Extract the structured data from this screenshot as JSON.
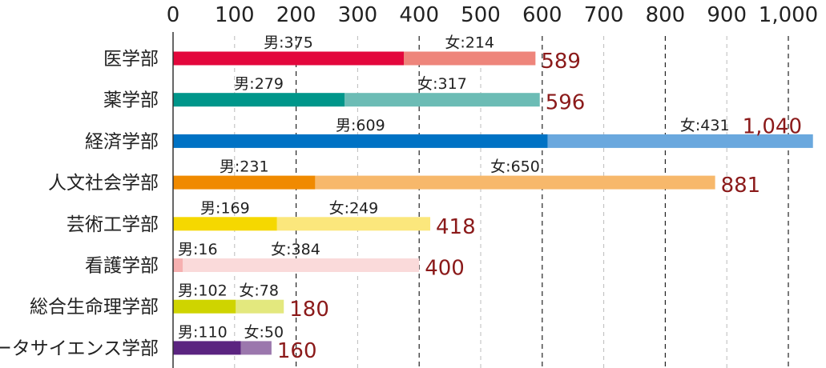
{
  "chart_data": {
    "type": "bar",
    "orientation": "horizontal",
    "stacked": true,
    "xlim": [
      0,
      1000
    ],
    "x_ticks": [
      {
        "value": 0,
        "label": "0"
      },
      {
        "value": 100,
        "label": "100"
      },
      {
        "value": 200,
        "label": "200"
      },
      {
        "value": 300,
        "label": "300"
      },
      {
        "value": 400,
        "label": "400"
      },
      {
        "value": 500,
        "label": "500"
      },
      {
        "value": 600,
        "label": "600"
      },
      {
        "value": 700,
        "label": "700"
      },
      {
        "value": 800,
        "label": "800"
      },
      {
        "value": 900,
        "label": "900"
      },
      {
        "value": 1000,
        "label": "1,000"
      }
    ],
    "grid": "vertical, dashed",
    "legend": "none",
    "categories": [
      {
        "name": "医学部",
        "male": 375,
        "female": 214,
        "male_label": "男:375",
        "female_label": "女:214",
        "total_label": "589",
        "male_color": "#e3073c",
        "female_color": "#ee857b"
      },
      {
        "name": "薬学部",
        "male": 279,
        "female": 317,
        "male_label": "男:279",
        "female_label": "女:317",
        "total_label": "596",
        "male_color": "#00968a",
        "female_color": "#6cbcb5"
      },
      {
        "name": "経済学部",
        "male": 609,
        "female": 431,
        "male_label": "男:609",
        "female_label": "女:431",
        "total_label": "1,040",
        "male_color": "#0072c4",
        "female_color": "#6aa8de"
      },
      {
        "name": "人文社会学部",
        "male": 231,
        "female": 650,
        "male_label": "男:231",
        "female_label": "女:650",
        "total_label": "881",
        "male_color": "#f08a00",
        "female_color": "#f7b86b"
      },
      {
        "name": "芸術工学部",
        "male": 169,
        "female": 249,
        "male_label": "男:169",
        "female_label": "女:249",
        "total_label": "418",
        "male_color": "#f5d800",
        "female_color": "#fbe77c"
      },
      {
        "name": "看護学部",
        "male": 16,
        "female": 384,
        "male_label": "男:16",
        "female_label": "女:384",
        "total_label": "400",
        "male_color": "#f6b0b0",
        "female_color": "#fadada"
      },
      {
        "name": "総合生命理学部",
        "male": 102,
        "female": 78,
        "male_label": "男:102",
        "female_label": "女:78",
        "total_label": "180",
        "male_color": "#cfd400",
        "female_color": "#e3e87e"
      },
      {
        "name": "データサイエンス学部",
        "male": 110,
        "female": 50,
        "male_label": "男:110",
        "female_label": "女:50",
        "total_label": "160",
        "male_color": "#5b2480",
        "female_color": "#9b77ad"
      }
    ]
  }
}
